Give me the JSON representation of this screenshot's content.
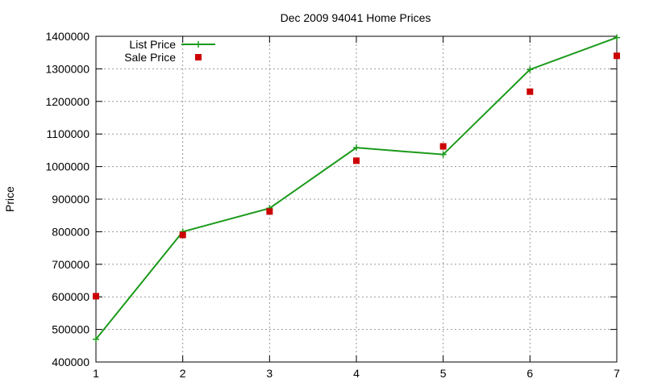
{
  "chart_data": {
    "type": "line",
    "title": "Dec 2009 94041 Home Prices",
    "xlabel": "",
    "ylabel": "Price",
    "x": [
      1,
      2,
      3,
      4,
      5,
      6,
      7
    ],
    "xlim": [
      1,
      7
    ],
    "ylim": [
      400000,
      1400000
    ],
    "xticks": [
      "1",
      "2",
      "3",
      "4",
      "5",
      "6",
      "7"
    ],
    "yticks": [
      "400000",
      "500000",
      "600000",
      "700000",
      "800000",
      "900000",
      "1000000",
      "1100000",
      "1200000",
      "1300000",
      "1400000"
    ],
    "grid": true,
    "legend_position": "top-left",
    "series": [
      {
        "name": "List Price",
        "style": "line-with-plus-markers",
        "color": "#1a9a1a",
        "values": [
          470000,
          800000,
          872000,
          1058000,
          1037000,
          1298000,
          1396000
        ]
      },
      {
        "name": "Sale Price",
        "style": "square-markers",
        "color": "#cc0000",
        "values": [
          602000,
          790000,
          862000,
          1018000,
          1062000,
          1230000,
          1340000
        ]
      }
    ]
  }
}
